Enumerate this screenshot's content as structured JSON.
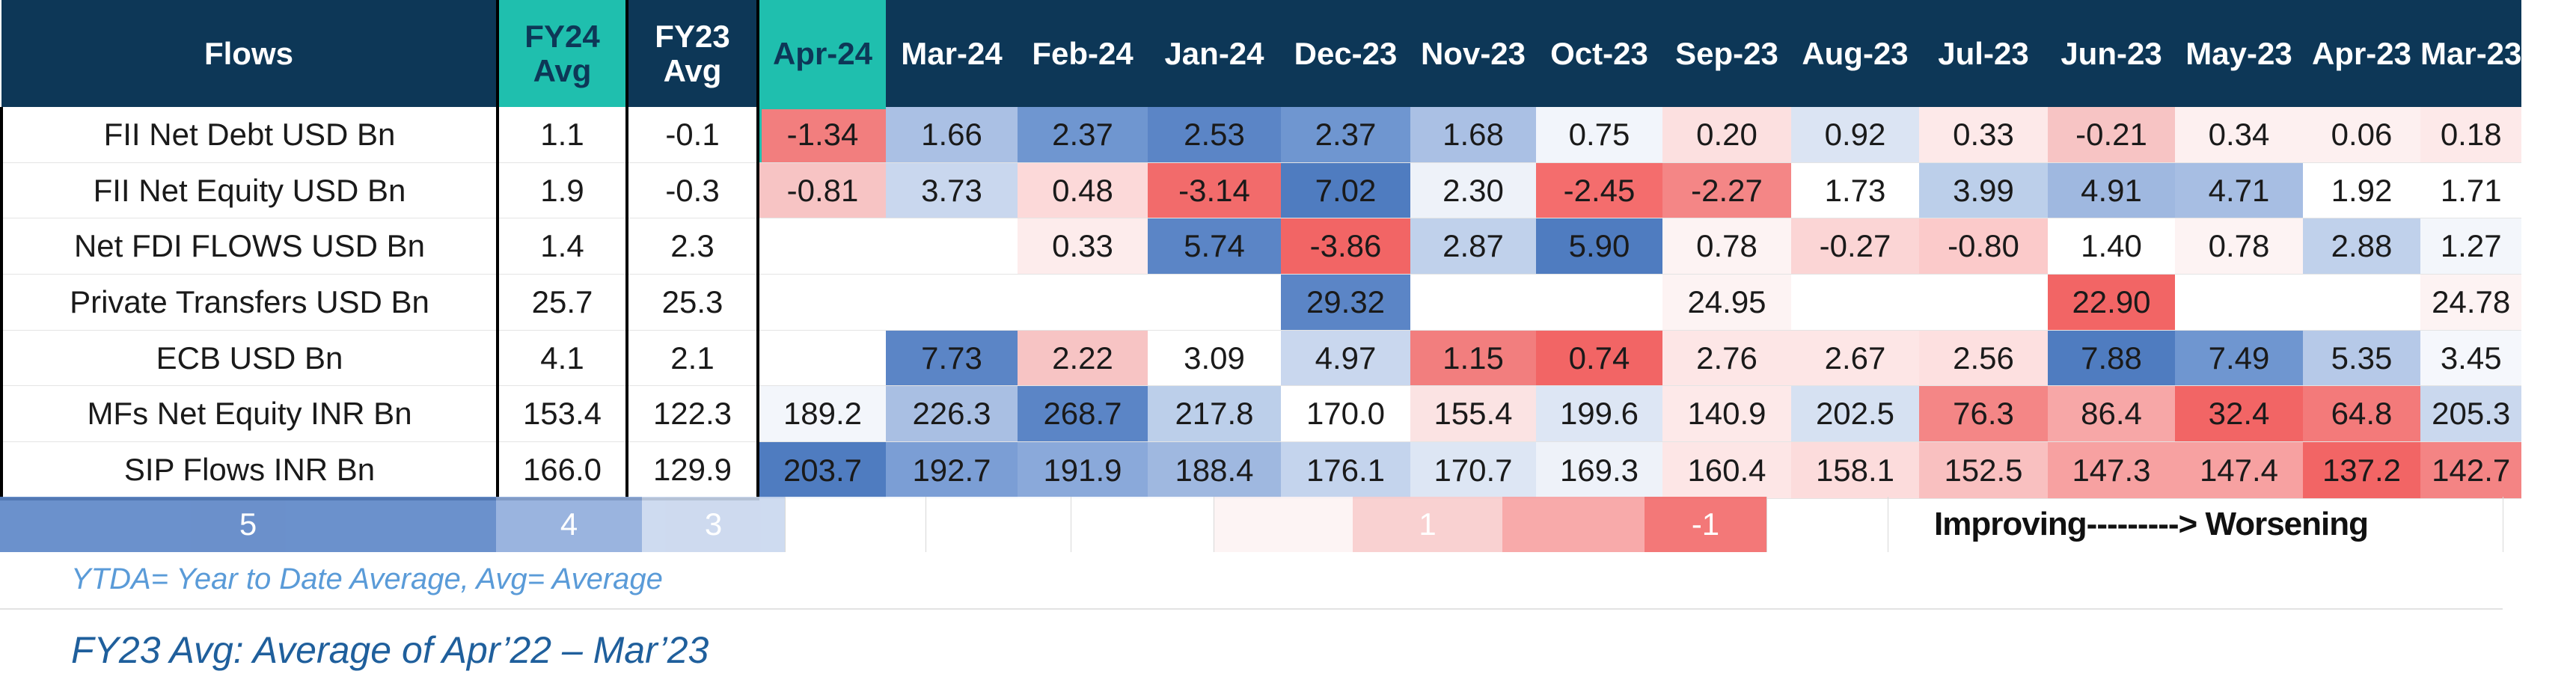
{
  "table": {
    "header": {
      "label": "Flows",
      "fy24_line1": "FY24",
      "fy24_line2": "Avg",
      "fy23_line1": "FY23",
      "fy23_line2": "Avg",
      "months": [
        "Apr-24",
        "Mar-24",
        "Feb-24",
        "Jan-24",
        "Dec-23",
        "Nov-23",
        "Oct-23",
        "Sep-23",
        "Aug-23",
        "Jul-23",
        "Jun-23",
        "May-23",
        "Apr-23",
        "Mar-23"
      ]
    },
    "rows": [
      {
        "label": "FII Net Debt USD Bn",
        "fy24": "1.1",
        "fy23": "-0.1",
        "values": [
          "-1.34",
          "1.66",
          "2.37",
          "2.53",
          "2.37",
          "1.68",
          "0.75",
          "0.20",
          "0.92",
          "0.33",
          "-0.21",
          "0.34",
          "0.06",
          "0.18"
        ],
        "colors": [
          "#f27e7e",
          "#aac0e4",
          "#6f96d0",
          "#5b85c6",
          "#6f96d0",
          "#aac0e4",
          "#f2f5fb",
          "#fce0e0",
          "#dbe4f3",
          "#fde9e9",
          "#f7c4c4",
          "#fdf0f0",
          "#fdf0f0",
          "#fde9e9"
        ]
      },
      {
        "label": "FII Net Equity USD Bn",
        "fy24": "1.9",
        "fy23": "-0.3",
        "values": [
          "-0.81",
          "3.73",
          "0.48",
          "-3.14",
          "7.02",
          "2.30",
          "-2.45",
          "-2.27",
          "1.73",
          "3.99",
          "4.91",
          "4.71",
          "1.92",
          "1.71"
        ],
        "colors": [
          "#f7c4c4",
          "#c9d7ee",
          "#fcd9d9",
          "#f26b6b",
          "#4f7cc0",
          "#eef2f9",
          "#f46d6d",
          "#f48686",
          "#ffffff",
          "#bccfea",
          "#9fb8e0",
          "#a7bee3",
          "#ffffff",
          "#ffffff"
        ]
      },
      {
        "label": "Net FDI FLOWS USD Bn",
        "fy24": "1.4",
        "fy23": "2.3",
        "values": [
          "",
          "",
          "0.33",
          "5.74",
          "-3.86",
          "2.87",
          "5.90",
          "0.78",
          "-0.27",
          "-0.80",
          "1.40",
          "0.78",
          "2.88",
          "1.27"
        ],
        "colors": [
          "#ffffff",
          "#ffffff",
          "#fdecec",
          "#5b85c6",
          "#f26565",
          "#c0d1eb",
          "#4f7cc0",
          "#fdf3f3",
          "#fbd5d5",
          "#fbcaca",
          "#ffffff",
          "#fdf3f3",
          "#c0d1eb",
          "#f3f6fb"
        ]
      },
      {
        "label": "Private Transfers USD Bn",
        "fy24": "25.7",
        "fy23": "25.3",
        "values": [
          "",
          "",
          "",
          "",
          "29.32",
          "",
          "",
          "24.95",
          "",
          "",
          "22.90",
          "",
          "",
          "24.78"
        ],
        "colors": [
          "#ffffff",
          "#ffffff",
          "#ffffff",
          "#ffffff",
          "#5b85c6",
          "#ffffff",
          "#ffffff",
          "#fdf3f3",
          "#ffffff",
          "#ffffff",
          "#f26565",
          "#ffffff",
          "#ffffff",
          "#fdf3f3"
        ]
      },
      {
        "label": "ECB USD Bn",
        "fy24": "4.1",
        "fy23": "2.1",
        "values": [
          "",
          "7.73",
          "2.22",
          "3.09",
          "4.97",
          "1.15",
          "0.74",
          "2.76",
          "2.67",
          "2.56",
          "7.88",
          "7.49",
          "5.35",
          "3.45"
        ],
        "colors": [
          "#ffffff",
          "#5b85c6",
          "#f7c4c4",
          "#ffffff",
          "#c9d7ee",
          "#f27e7e",
          "#f26565",
          "#fde6e6",
          "#fde6e6",
          "#fde0e0",
          "#4f7cc0",
          "#6f96d0",
          "#b6c9e8",
          "#f5f7fc"
        ]
      },
      {
        "label": "MFs Net Equity INR Bn",
        "fy24": "153.4",
        "fy23": "122.3",
        "values": [
          "189.2",
          "226.3",
          "268.7",
          "217.8",
          "170.0",
          "155.4",
          "199.6",
          "140.9",
          "202.5",
          "76.3",
          "86.4",
          "32.4",
          "64.8",
          "205.3"
        ],
        "colors": [
          "#f3f6fb",
          "#a9bfe3",
          "#5b85c6",
          "#bccfea",
          "#ffffff",
          "#fbe3e3",
          "#dde6f4",
          "#fde9e9",
          "#d6e1f2",
          "#f48686",
          "#f7a7a7",
          "#f26565",
          "#f37a7a",
          "#cad8ee"
        ]
      },
      {
        "label": "SIP Flows  INR Bn",
        "fy24": "166.0",
        "fy23": "129.9",
        "values": [
          "203.7",
          "192.7",
          "191.9",
          "188.4",
          "176.1",
          "170.7",
          "169.3",
          "160.4",
          "158.1",
          "152.5",
          "147.3",
          "147.4",
          "137.2",
          "142.7"
        ],
        "colors": [
          "#4f7cc0",
          "#7b9ed5",
          "#8aa9da",
          "#9fb8e0",
          "#c4d4ed",
          "#dde6f4",
          "#eef2f9",
          "#fde6e6",
          "#fcdcdc",
          "#f9c0c0",
          "#f7a1a1",
          "#f7a1a1",
          "#f26565",
          "#f48484"
        ]
      }
    ]
  },
  "legend": {
    "segments": [
      {
        "label": "5",
        "color": "#5b85c6"
      },
      {
        "label": "4",
        "color": "#90acdc"
      },
      {
        "label": "3",
        "color": "#c9d7ee"
      },
      {
        "label": "",
        "color": "#ffffff"
      },
      {
        "label": "",
        "color": "#ffffff"
      },
      {
        "label": "",
        "color": "#ffffff"
      },
      {
        "label": "",
        "color": "#fdf3f3"
      },
      {
        "label": "1",
        "color": "#f9cdcd"
      },
      {
        "label": "",
        "color": "#f7a1a1"
      },
      {
        "label": "-1",
        "color": "#f26a6a"
      }
    ],
    "caption": "Improving---------> Worsening"
  },
  "notes": {
    "ytda": "YTDA= Year to Date Average, Avg= Average",
    "fy23": "FY23 Avg: Average of Apr’22 – Mar’23"
  }
}
